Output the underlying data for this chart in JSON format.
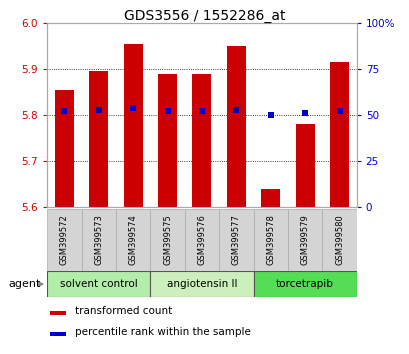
{
  "title": "GDS3556 / 1552286_at",
  "samples": [
    "GSM399572",
    "GSM399573",
    "GSM399574",
    "GSM399575",
    "GSM399576",
    "GSM399577",
    "GSM399578",
    "GSM399579",
    "GSM399580"
  ],
  "red_values": [
    5.855,
    5.895,
    5.955,
    5.89,
    5.89,
    5.95,
    5.64,
    5.78,
    5.915
  ],
  "blue_percentiles": [
    52,
    53,
    54,
    52,
    52,
    53,
    50,
    51,
    52
  ],
  "ymin": 5.6,
  "ymax": 6.0,
  "y2min": 0,
  "y2max": 100,
  "yticks": [
    5.6,
    5.7,
    5.8,
    5.9,
    6.0
  ],
  "y2ticks": [
    0,
    25,
    50,
    75,
    100
  ],
  "y2ticklabels": [
    "0",
    "25",
    "50",
    "75",
    "100%"
  ],
  "bar_color": "#cc0000",
  "dot_color": "#0000cc",
  "bar_width": 0.55,
  "groups": [
    {
      "label": "solvent control",
      "start": 0,
      "end": 3,
      "color": "#b2eeaa"
    },
    {
      "label": "angiotensin II",
      "start": 3,
      "end": 6,
      "color": "#ccf0bb"
    },
    {
      "label": "torcetrapib",
      "start": 6,
      "end": 9,
      "color": "#55dd55"
    }
  ],
  "agent_label": "agent",
  "legend_red": "transformed count",
  "legend_blue": "percentile rank within the sample",
  "tick_color_left": "#cc0000",
  "tick_color_right": "#0000cc",
  "sample_bg": "#d4d4d4",
  "sample_border": "#aaaaaa",
  "grid_color": "#000000"
}
